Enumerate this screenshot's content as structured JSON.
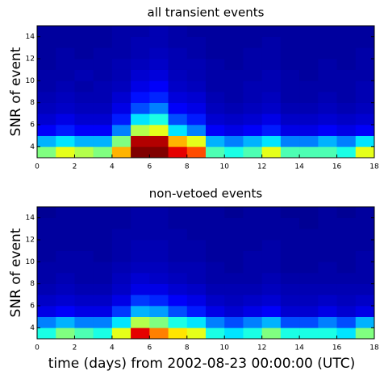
{
  "chart_data": [
    {
      "type": "heatmap",
      "title": "all transient events",
      "ylabel": "SNR of event",
      "colormap": "jet",
      "xlim": [
        0,
        18
      ],
      "xticks": [
        0,
        2,
        4,
        6,
        8,
        10,
        12,
        14,
        16,
        18
      ],
      "ylim": [
        3,
        15
      ],
      "yticks": [
        4,
        6,
        8,
        10,
        12,
        14
      ],
      "x_edges": [
        0,
        1,
        2,
        3,
        4,
        5,
        6,
        7,
        8,
        9,
        10,
        11,
        12,
        13,
        14,
        15,
        16,
        17,
        18
      ],
      "y_edges": [
        3,
        4,
        5,
        6,
        7,
        8,
        9,
        10,
        11,
        12,
        13,
        14,
        15
      ],
      "z": [
        [
          0.5,
          0.6,
          0.55,
          0.5,
          0.7,
          1,
          1,
          0.9,
          0.8,
          0.45,
          0.4,
          0.45,
          0.6,
          0.45,
          0.45,
          0.45,
          0.4,
          0.6
        ],
        [
          0.3,
          0.35,
          0.3,
          0.3,
          0.5,
          0.95,
          0.95,
          0.7,
          0.6,
          0.3,
          0.25,
          0.3,
          0.35,
          0.25,
          0.25,
          0.3,
          0.25,
          0.35
        ],
        [
          0.12,
          0.15,
          0.12,
          0.12,
          0.25,
          0.55,
          0.6,
          0.35,
          0.25,
          0.12,
          0.1,
          0.12,
          0.15,
          0.1,
          0.1,
          0.12,
          0.1,
          0.12
        ],
        [
          0.08,
          0.1,
          0.08,
          0.08,
          0.15,
          0.35,
          0.4,
          0.2,
          0.15,
          0.08,
          0.07,
          0.08,
          0.1,
          0.07,
          0.07,
          0.08,
          0.07,
          0.08
        ],
        [
          0.06,
          0.07,
          0.06,
          0.06,
          0.1,
          0.2,
          0.25,
          0.12,
          0.1,
          0.06,
          0.05,
          0.06,
          0.07,
          0.05,
          0.05,
          0.06,
          0.05,
          0.06
        ],
        [
          0.05,
          0.06,
          0.05,
          0.05,
          0.08,
          0.14,
          0.16,
          0.09,
          0.08,
          0.05,
          0.04,
          0.05,
          0.06,
          0.04,
          0.04,
          0.05,
          0.04,
          0.05
        ],
        [
          0.04,
          0.05,
          0.04,
          0.05,
          0.06,
          0.1,
          0.12,
          0.07,
          0.06,
          0.04,
          0.04,
          0.05,
          0.05,
          0.04,
          0.04,
          0.04,
          0.04,
          0.05
        ],
        [
          0.04,
          0.04,
          0.05,
          0.04,
          0.05,
          0.08,
          0.09,
          0.06,
          0.05,
          0.04,
          0.04,
          0.04,
          0.05,
          0.04,
          0.03,
          0.04,
          0.04,
          0.04
        ],
        [
          0.03,
          0.04,
          0.04,
          0.04,
          0.05,
          0.06,
          0.07,
          0.05,
          0.05,
          0.04,
          0.03,
          0.04,
          0.04,
          0.03,
          0.03,
          0.04,
          0.03,
          0.04
        ],
        [
          0.03,
          0.04,
          0.03,
          0.04,
          0.04,
          0.05,
          0.06,
          0.05,
          0.04,
          0.03,
          0.03,
          0.04,
          0.04,
          0.03,
          0.03,
          0.03,
          0.03,
          0.04
        ],
        [
          0.03,
          0.03,
          0.03,
          0.03,
          0.04,
          0.05,
          0.05,
          0.04,
          0.04,
          0.03,
          0.03,
          0.03,
          0.04,
          0.03,
          0.03,
          0.03,
          0.03,
          0.03
        ],
        [
          0.03,
          0.03,
          0.03,
          0.03,
          0.04,
          0.04,
          0.05,
          0.04,
          0.03,
          0.03,
          0.03,
          0.03,
          0.03,
          0.03,
          0.03,
          0.03,
          0.03,
          0.03
        ]
      ]
    },
    {
      "type": "heatmap",
      "title": "non-vetoed events",
      "ylabel": "SNR of event",
      "colormap": "jet",
      "xlabel": "time (days) from 2002-08-23 00:00:00 (UTC)",
      "xlim": [
        0,
        18
      ],
      "xticks": [
        0,
        2,
        4,
        6,
        8,
        10,
        12,
        14,
        16,
        18
      ],
      "ylim": [
        3,
        15
      ],
      "yticks": [
        4,
        6,
        8,
        10,
        12,
        14
      ],
      "x_edges": [
        0,
        1,
        2,
        3,
        4,
        5,
        6,
        7,
        8,
        9,
        10,
        11,
        12,
        13,
        14,
        15,
        16,
        17,
        18
      ],
      "y_edges": [
        3,
        4,
        5,
        6,
        7,
        8,
        9,
        10,
        11,
        12,
        13,
        14,
        15
      ],
      "z": [
        [
          0.4,
          0.5,
          0.45,
          0.4,
          0.6,
          0.9,
          0.75,
          0.65,
          0.6,
          0.4,
          0.35,
          0.4,
          0.5,
          0.4,
          0.4,
          0.4,
          0.35,
          0.5
        ],
        [
          0.25,
          0.3,
          0.25,
          0.25,
          0.35,
          0.55,
          0.5,
          0.4,
          0.35,
          0.25,
          0.2,
          0.25,
          0.3,
          0.2,
          0.2,
          0.25,
          0.2,
          0.3
        ],
        [
          0.1,
          0.12,
          0.1,
          0.1,
          0.18,
          0.3,
          0.28,
          0.2,
          0.15,
          0.1,
          0.08,
          0.1,
          0.12,
          0.08,
          0.08,
          0.1,
          0.08,
          0.1
        ],
        [
          0.07,
          0.08,
          0.07,
          0.07,
          0.1,
          0.18,
          0.16,
          0.12,
          0.1,
          0.07,
          0.06,
          0.07,
          0.08,
          0.06,
          0.06,
          0.07,
          0.06,
          0.07
        ],
        [
          0.05,
          0.06,
          0.05,
          0.05,
          0.07,
          0.1,
          0.1,
          0.08,
          0.07,
          0.05,
          0.05,
          0.05,
          0.06,
          0.05,
          0.05,
          0.05,
          0.05,
          0.05
        ],
        [
          0.04,
          0.05,
          0.04,
          0.04,
          0.06,
          0.08,
          0.07,
          0.06,
          0.05,
          0.04,
          0.04,
          0.04,
          0.05,
          0.04,
          0.04,
          0.04,
          0.04,
          0.04
        ],
        [
          0.04,
          0.04,
          0.04,
          0.04,
          0.05,
          0.06,
          0.06,
          0.05,
          0.05,
          0.04,
          0.03,
          0.04,
          0.04,
          0.03,
          0.03,
          0.04,
          0.03,
          0.04
        ],
        [
          0.03,
          0.04,
          0.04,
          0.03,
          0.04,
          0.05,
          0.05,
          0.04,
          0.04,
          0.03,
          0.03,
          0.04,
          0.04,
          0.03,
          0.03,
          0.03,
          0.03,
          0.04
        ],
        [
          0.03,
          0.03,
          0.03,
          0.03,
          0.04,
          0.05,
          0.05,
          0.04,
          0.04,
          0.03,
          0.03,
          0.03,
          0.04,
          0.03,
          0.03,
          0.03,
          0.03,
          0.03
        ],
        [
          0.03,
          0.03,
          0.03,
          0.03,
          0.04,
          0.04,
          0.04,
          0.04,
          0.03,
          0.03,
          0.03,
          0.03,
          0.03,
          0.03,
          0.03,
          0.03,
          0.03,
          0.03
        ],
        [
          0.03,
          0.03,
          0.03,
          0.03,
          0.03,
          0.04,
          0.04,
          0.03,
          0.03,
          0.03,
          0.03,
          0.03,
          0.03,
          0.03,
          0.02,
          0.03,
          0.03,
          0.03
        ],
        [
          0.02,
          0.03,
          0.03,
          0.03,
          0.03,
          0.04,
          0.04,
          0.03,
          0.03,
          0.03,
          0.02,
          0.03,
          0.03,
          0.02,
          0.02,
          0.03,
          0.02,
          0.03
        ]
      ]
    }
  ]
}
